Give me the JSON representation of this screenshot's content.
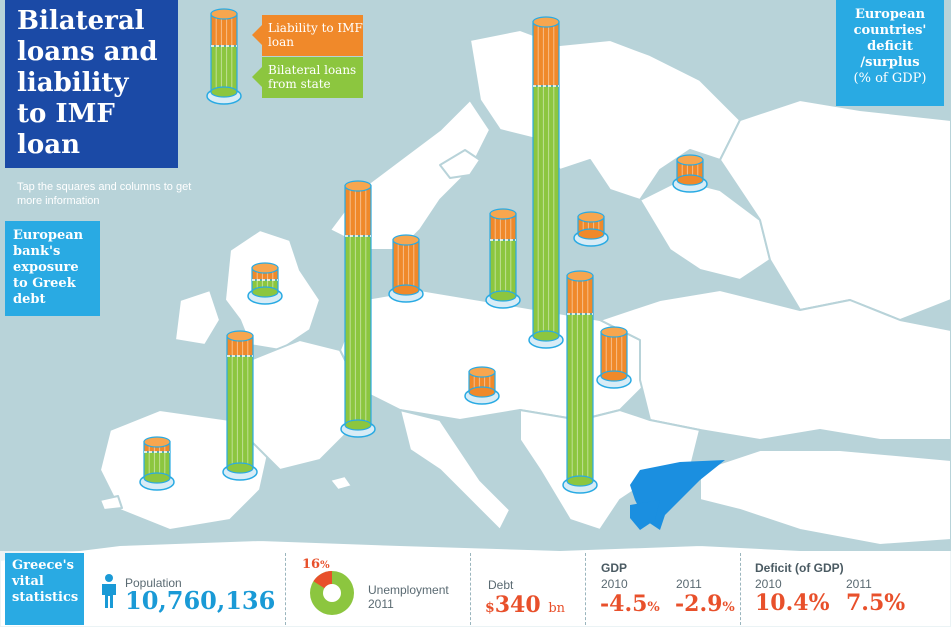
{
  "title": "Bilateral loans and liability to IMF loan",
  "hint": "Tap the squares and columns to get more information",
  "legend": {
    "imf_label": "Liability to IMF loan",
    "bilateral_label": "Bilateral loans from state",
    "imf_color": "#f0892a",
    "bilateral_color": "#8cc63f"
  },
  "side_panel": {
    "label": "European bank's exposure to Greek debt"
  },
  "deficit_panel": {
    "title": "European countries' deficit /surplus",
    "subtitle": "(% of GDP)"
  },
  "highlight_color": "#1b8fe0",
  "stats": {
    "label": "Greece's vital statistics",
    "population": {
      "label": "Population",
      "value": "10,760,136"
    },
    "unemployment": {
      "label": "Unemployment",
      "year": "2011",
      "value": "16",
      "unit": "%",
      "fraction": 0.16
    },
    "debt": {
      "label": "Debt",
      "currency": "$",
      "value": "340",
      "unit": "bn"
    },
    "gdp": {
      "label": "GDP",
      "year_a": "2010",
      "value_a": "-4.5",
      "year_b": "2011",
      "value_b": "-2.9",
      "unit": "%"
    },
    "deficit": {
      "label": "Deficit (of GDP)",
      "year_a": "2010",
      "value_a": "10.4%",
      "year_b": "2011",
      "value_b": "7.5%"
    }
  }
}
